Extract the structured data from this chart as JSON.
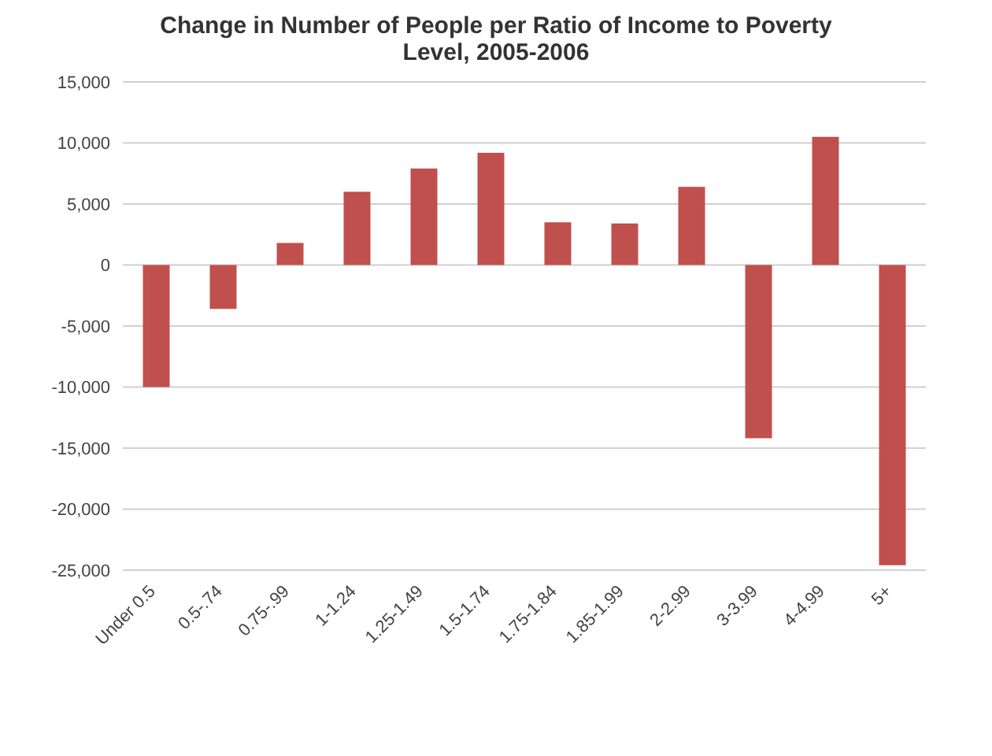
{
  "chart_data": {
    "type": "bar",
    "title": "Change in Number of People per Ratio of Income to Poverty Level, 2005-2006",
    "categories": [
      "Under 0.5",
      "0.5-.74",
      "0.75-.99",
      "1-1.24",
      "1.25-1.49",
      "1.5-1.74",
      "1.75-1.84",
      "1.85-1.99",
      "2-2.99",
      "3-3.99",
      "4-4.99",
      "5+"
    ],
    "values": [
      -10000,
      -3600,
      1800,
      6000,
      7900,
      9200,
      3500,
      3400,
      6400,
      -14200,
      10500,
      -24600
    ],
    "color": "#c0504d",
    "ylim": [
      -25000,
      15000
    ],
    "yticks": [
      {
        "value": -25000,
        "label": "-25,000"
      },
      {
        "value": -20000,
        "label": "-20,000"
      },
      {
        "value": -15000,
        "label": "-15,000"
      },
      {
        "value": -10000,
        "label": "-10,000"
      },
      {
        "value": -5000,
        "label": "-5,000"
      },
      0,
      {
        "value": 5000,
        "label": "5,000"
      },
      {
        "value": 10000,
        "label": "10,000"
      },
      {
        "value": 15000,
        "label": "15,000"
      }
    ],
    "grid": "y"
  }
}
